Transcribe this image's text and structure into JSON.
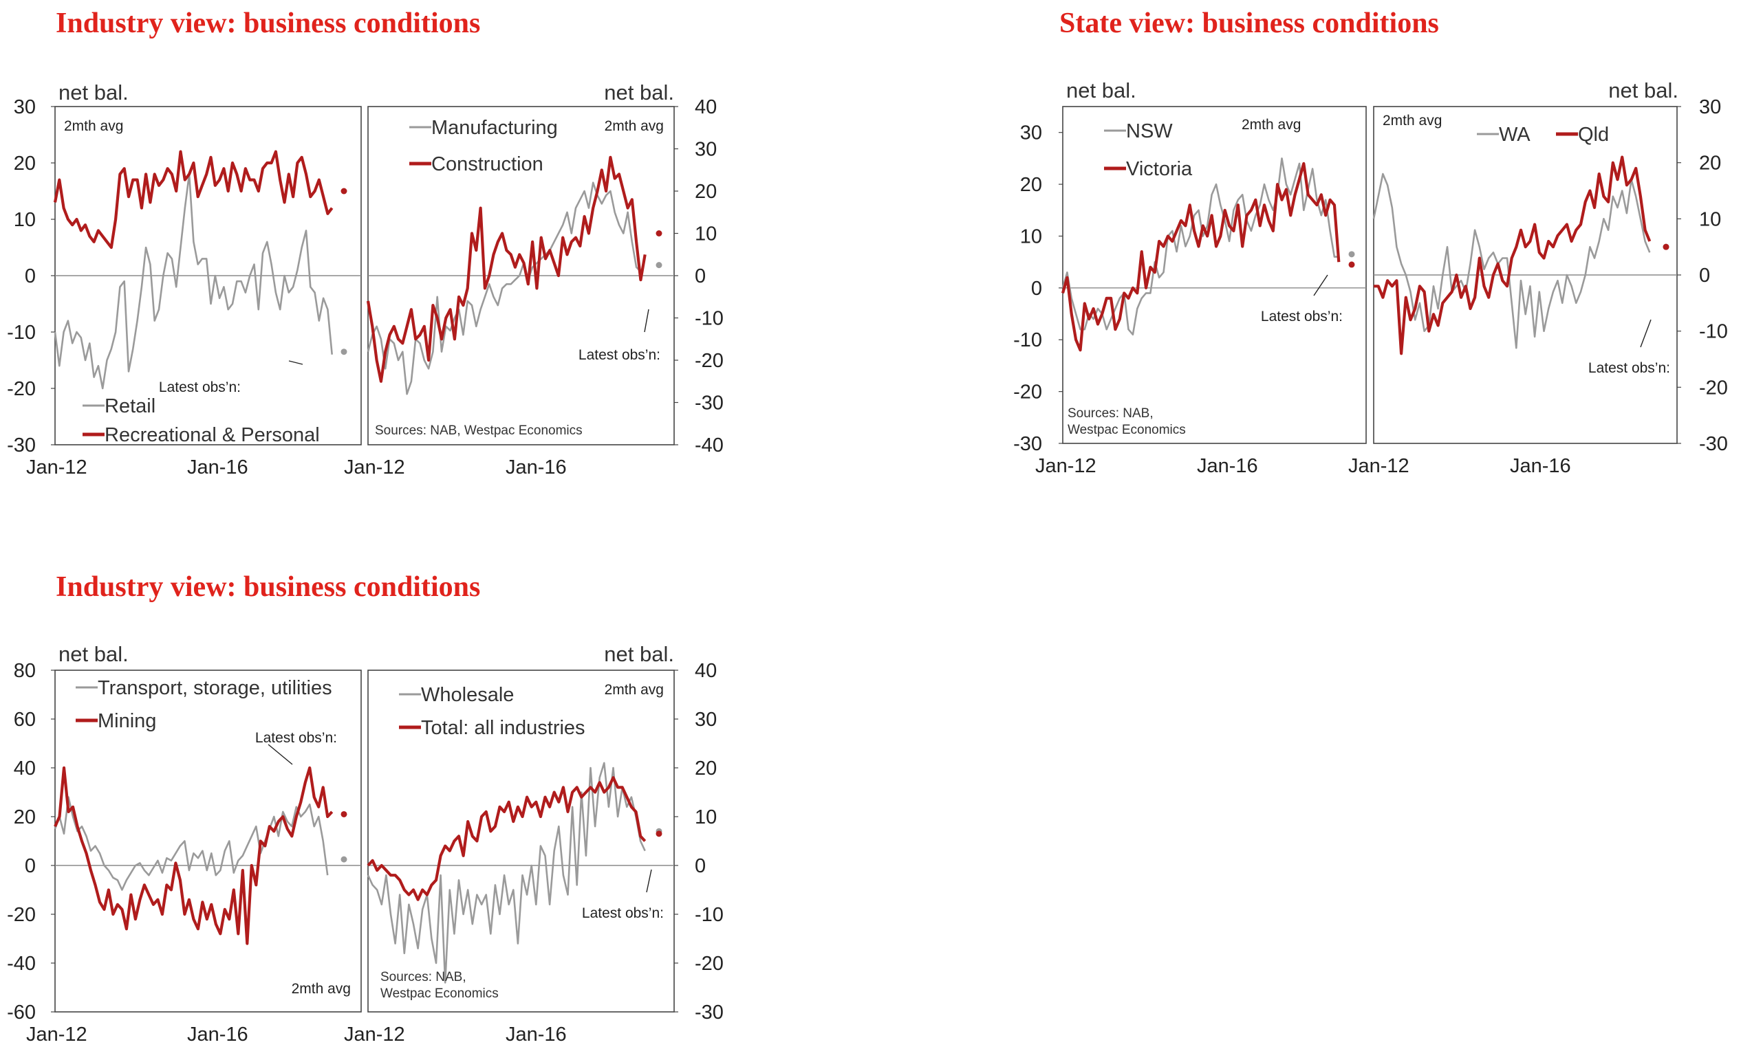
{
  "titles": {
    "industry_top": "Industry view: business conditions",
    "state": "State view: business conditions",
    "industry_bottom": "Industry view: business conditions"
  },
  "colors": {
    "grey": "#9a9a9a",
    "red": "#b01c1c",
    "axis": "#444444",
    "zero": "#8a8a8a"
  },
  "chart_data": [
    {
      "id": "retail-rec",
      "type": "line",
      "title": "Industry view: business conditions",
      "ylabel": "net bal.",
      "note": "2mth avg",
      "latest_label": "Latest obs’n:",
      "ylim": [
        -30,
        30
      ],
      "yticks": [
        -30,
        -20,
        -10,
        0,
        10,
        20,
        30
      ],
      "xticks": [
        "Jan-12",
        "Jan-16"
      ],
      "series": [
        {
          "name": "Retail",
          "color": "grey",
          "values": [
            -10,
            -16,
            -10,
            -8,
            -12,
            -10,
            -11,
            -15,
            -12,
            -18,
            -16,
            -20,
            -15,
            -13,
            -10,
            -2,
            -1,
            -17,
            -13,
            -8,
            -2,
            5,
            2,
            -8,
            -6,
            0,
            4,
            3,
            -2,
            5,
            12,
            18,
            6,
            2,
            3,
            3,
            -5,
            0,
            -4,
            -2,
            -6,
            -5,
            -1,
            -1,
            -3,
            0,
            2,
            -6,
            4,
            6,
            2,
            -3,
            -6,
            0,
            -3,
            -2,
            1,
            5,
            8,
            -2,
            -3,
            -8,
            -4,
            -6,
            -14
          ],
          "latest": -13.5
        },
        {
          "name": "Recreational & Personal",
          "color": "red",
          "values": [
            13,
            17,
            12,
            10,
            9,
            10,
            8,
            9,
            7,
            6,
            8,
            7,
            6,
            5,
            10,
            18,
            19,
            14,
            17,
            17,
            12,
            18,
            13,
            18,
            16,
            17,
            19,
            18,
            15,
            22,
            17,
            18,
            20,
            14,
            16,
            18,
            21,
            16,
            17,
            19,
            15,
            20,
            18,
            15,
            19,
            17,
            17,
            15,
            19,
            20,
            20,
            22,
            17,
            13,
            18,
            14,
            20,
            21,
            18,
            14,
            15,
            17,
            14,
            11,
            12
          ],
          "latest": 15
        }
      ]
    },
    {
      "id": "mfg-cons",
      "type": "line",
      "ylabel": "net bal.",
      "note": "2mth avg",
      "latest_label": "Latest obs’n:",
      "source": "Sources: NAB, Westpac Economics",
      "ylim": [
        -40,
        40
      ],
      "yticks": [
        -40,
        -30,
        -20,
        -10,
        0,
        10,
        20,
        30,
        40
      ],
      "xticks": [
        "Jan-12",
        "Jan-16"
      ],
      "series": [
        {
          "name": "Manufacturing",
          "color": "grey",
          "values": [
            -18,
            -14,
            -12,
            -15,
            -22,
            -15,
            -16,
            -20,
            -18,
            -28,
            -25,
            -15,
            -16,
            -20,
            -22,
            -18,
            -5,
            -18,
            -12,
            -13,
            -10,
            -8,
            -14,
            -6,
            -7,
            -12,
            -8,
            -5,
            -2,
            -5,
            -7,
            -3,
            -2,
            -2,
            -1,
            0,
            3,
            -1,
            2,
            3,
            4,
            5,
            6,
            8,
            10,
            12,
            15,
            10,
            16,
            18,
            20,
            16,
            22,
            19,
            17,
            19,
            20,
            15,
            12,
            10,
            15,
            8,
            2,
            1
          ],
          "latest": 2.5
        },
        {
          "name": "Construction",
          "color": "red",
          "values": [
            -6,
            -12,
            -20,
            -25,
            -18,
            -14,
            -12,
            -15,
            -16,
            -12,
            -8,
            -15,
            -14,
            -12,
            -20,
            -7,
            -10,
            -15,
            -10,
            -8,
            -15,
            -5,
            -7,
            -3,
            10,
            6,
            16,
            -3,
            0,
            5,
            8,
            10,
            6,
            5,
            2,
            5,
            3,
            -2,
            8,
            -3,
            9,
            4,
            6,
            3,
            0,
            9,
            5,
            8,
            9,
            7,
            14,
            10,
            16,
            20,
            25,
            20,
            28,
            23,
            24,
            20,
            16,
            18,
            8,
            -1,
            5
          ],
          "latest": 10
        }
      ]
    },
    {
      "id": "nsw-vic",
      "type": "line",
      "title": "State view: business conditions",
      "ylabel": "net bal.",
      "note": "2mth avg",
      "latest_label": "Latest obs’n:",
      "source_lines": [
        "Sources: NAB,",
        "Westpac Economics"
      ],
      "ylim": [
        -30,
        35
      ],
      "yticks": [
        -30,
        -20,
        -10,
        0,
        10,
        20,
        30
      ],
      "xticks": [
        "Jan-12",
        "Jan-16"
      ],
      "series": [
        {
          "name": "NSW",
          "color": "grey",
          "values": [
            0,
            3,
            -2,
            -5,
            -8,
            -8,
            -5,
            -6,
            -4,
            -5,
            -8,
            -6,
            -4,
            -2,
            -1,
            -8,
            -9,
            -4,
            -2,
            -1,
            -1,
            5,
            2,
            3,
            10,
            11,
            7,
            12,
            8,
            10,
            14,
            15,
            10,
            12,
            18,
            20,
            16,
            13,
            9,
            15,
            17,
            18,
            13,
            11,
            14,
            16,
            20,
            17,
            15,
            18,
            25,
            20,
            18,
            21,
            24,
            15,
            19,
            23,
            17,
            14,
            17,
            11,
            6,
            6
          ],
          "latest": 6.5
        },
        {
          "name": "Victoria",
          "color": "red",
          "values": [
            -1,
            2,
            -5,
            -10,
            -12,
            -3,
            -6,
            -4,
            -7,
            -5,
            -2,
            -2,
            -8,
            -6,
            -1,
            -2,
            0,
            -1,
            7,
            0,
            4,
            3,
            9,
            8,
            10,
            9,
            11,
            13,
            12,
            16,
            11,
            8,
            12,
            10,
            14,
            8,
            10,
            15,
            12,
            11,
            16,
            8,
            14,
            15,
            17,
            12,
            16,
            13,
            11,
            20,
            17,
            19,
            14,
            18,
            21,
            24,
            18,
            17,
            16,
            18,
            14,
            17,
            16,
            5
          ],
          "latest": 4.5
        }
      ]
    },
    {
      "id": "wa-qld",
      "type": "line",
      "ylabel": "net bal.",
      "note": "2mth avg",
      "latest_label": "Latest obs’n:",
      "ylim": [
        -30,
        30
      ],
      "yticks": [
        -30,
        -20,
        -10,
        0,
        10,
        20,
        30
      ],
      "xticks": [
        "Jan-12",
        "Jan-16"
      ],
      "series": [
        {
          "name": "WA",
          "color": "grey",
          "values": [
            10,
            14,
            18,
            16,
            12,
            5,
            2,
            0,
            -3,
            -8,
            -5,
            -10,
            -9,
            -2,
            -6,
            0,
            5,
            -3,
            -2,
            -1,
            -3,
            2,
            8,
            5,
            1,
            3,
            4,
            2,
            3,
            3,
            -5,
            -13,
            -1,
            -7,
            -2,
            -11,
            -3,
            -10,
            -6,
            -3,
            -1,
            -5,
            0,
            -2,
            -5,
            -3,
            0,
            5,
            3,
            6,
            10,
            8,
            14,
            12,
            15,
            11,
            17,
            14,
            10,
            6,
            4
          ],
          "latest": 5
        },
        {
          "name": "Qld",
          "color": "red",
          "values": [
            -2,
            -2,
            -4,
            -1,
            -2,
            -1,
            -14,
            -4,
            -8,
            -6,
            -2,
            -3,
            -10,
            -7,
            -9,
            -5,
            -4,
            -3,
            0,
            -4,
            -2,
            -6,
            -4,
            3,
            -2,
            -4,
            0,
            2,
            -1,
            -2,
            3,
            5,
            8,
            5,
            6,
            9,
            4,
            3,
            6,
            5,
            7,
            8,
            9,
            6,
            8,
            9,
            13,
            15,
            12,
            18,
            14,
            13,
            20,
            17,
            21,
            16,
            17,
            19,
            14,
            8,
            6
          ],
          "latest": 5
        }
      ]
    },
    {
      "id": "transport-mining",
      "type": "line",
      "title": "Industry view: business conditions",
      "ylabel": "net bal.",
      "note": "2mth avg",
      "latest_label": "Latest obs’n:",
      "ylim": [
        -60,
        80
      ],
      "yticks": [
        -60,
        -40,
        -20,
        0,
        20,
        40,
        60,
        80
      ],
      "xticks": [
        "Jan-12",
        "Jan-16"
      ],
      "series": [
        {
          "name": "Transport, storage, utilities",
          "color": "grey",
          "values": [
            15,
            20,
            13,
            28,
            20,
            14,
            16,
            12,
            6,
            8,
            5,
            0,
            -2,
            -5,
            -6,
            -10,
            -6,
            -3,
            0,
            1,
            -2,
            -4,
            -1,
            2,
            -3,
            3,
            2,
            5,
            8,
            10,
            -2,
            5,
            3,
            6,
            -2,
            5,
            -4,
            -2,
            6,
            10,
            -3,
            2,
            4,
            8,
            12,
            16,
            5,
            10,
            15,
            20,
            12,
            22,
            18,
            16,
            24,
            20,
            22,
            25,
            16,
            20,
            10,
            -4
          ],
          "latest": 2.5
        },
        {
          "name": "Mining",
          "color": "red",
          "values": [
            16,
            20,
            40,
            22,
            24,
            16,
            10,
            5,
            -2,
            -8,
            -15,
            -18,
            -10,
            -20,
            -16,
            -18,
            -26,
            -12,
            -22,
            -14,
            -8,
            -12,
            -16,
            -14,
            -20,
            -8,
            -10,
            1,
            -6,
            -20,
            -14,
            -22,
            -26,
            -15,
            -22,
            -16,
            -24,
            -28,
            -18,
            -22,
            -10,
            -28,
            -2,
            -32,
            0,
            -8,
            10,
            8,
            16,
            14,
            18,
            20,
            15,
            12,
            20,
            26,
            34,
            40,
            28,
            24,
            32,
            20,
            22
          ],
          "latest": 21
        }
      ]
    },
    {
      "id": "wholesale-total",
      "type": "line",
      "ylabel": "net bal.",
      "note": "2mth avg",
      "latest_label": "Latest obs’n:",
      "source_lines": [
        "Sources: NAB,",
        "Westpac Economics"
      ],
      "ylim": [
        -30,
        40
      ],
      "yticks": [
        -30,
        -20,
        -10,
        0,
        10,
        20,
        30,
        40
      ],
      "xticks": [
        "Jan-12",
        "Jan-16"
      ],
      "series": [
        {
          "name": "Wholesale",
          "color": "grey",
          "values": [
            -2,
            -4,
            -5,
            -8,
            -2,
            -10,
            -16,
            -6,
            -18,
            -8,
            -12,
            -17,
            -9,
            -6,
            -15,
            -20,
            -2,
            -24,
            -5,
            -14,
            -3,
            -10,
            -5,
            -12,
            -6,
            -8,
            -6,
            -14,
            -4,
            -10,
            -2,
            -8,
            -5,
            -16,
            -2,
            -6,
            0,
            -8,
            4,
            2,
            -8,
            3,
            8,
            -2,
            -6,
            12,
            -4,
            15,
            2,
            20,
            8,
            18,
            21,
            12,
            20,
            10,
            16,
            12,
            14,
            10,
            5,
            3
          ],
          "latest": 7
        },
        {
          "name": "Total: all industries",
          "color": "red",
          "values": [
            0,
            1,
            -1,
            0,
            -1,
            -2,
            -2,
            -3,
            -5,
            -6,
            -5,
            -7,
            -5,
            -6,
            -4,
            -3,
            2,
            4,
            3,
            5,
            6,
            2,
            9,
            6,
            5,
            10,
            11,
            7,
            8,
            12,
            11,
            13,
            9,
            12,
            10,
            14,
            12,
            13,
            10,
            14,
            12,
            15,
            13,
            16,
            11,
            15,
            16,
            14,
            15,
            16,
            15,
            17,
            15,
            16,
            18,
            16,
            16,
            14,
            12,
            11,
            6,
            5
          ],
          "latest": 6.5
        }
      ]
    }
  ]
}
